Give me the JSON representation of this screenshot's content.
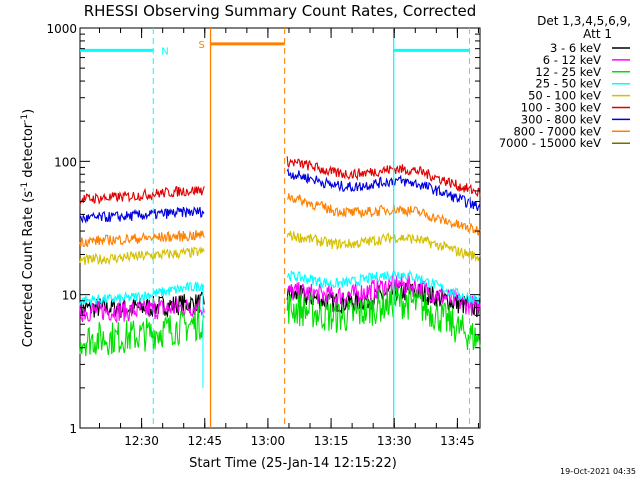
{
  "chart_data": {
    "type": "line",
    "title": "RHESSI Observing Summary Count Rates, Corrected",
    "xlabel": "Start Time (25-Jan-14 12:15:22)",
    "ylabel": "Corrected Count Rate (s-1 detector-1)",
    "ylabel_parts": {
      "main": "Corrected Count Rate (s",
      "exp1": "-1",
      "mid": " detector",
      "exp2": "-1",
      "end": ")"
    },
    "y_scale": "log",
    "ylim": [
      1,
      1000
    ],
    "xlim_minutes": [
      0,
      95
    ],
    "x_ticks": [
      {
        "label": "12:30",
        "minute": 14.63
      },
      {
        "label": "12:45",
        "minute": 29.63
      },
      {
        "label": "13:00",
        "minute": 44.63
      },
      {
        "label": "13:15",
        "minute": 59.63
      },
      {
        "label": "13:30",
        "minute": 74.63
      },
      {
        "label": "13:45",
        "minute": 89.63
      }
    ],
    "y_ticks": [
      {
        "label": "1",
        "value": 1
      },
      {
        "label": "10",
        "value": 10
      },
      {
        "label": "100",
        "value": 100
      },
      {
        "label": "1000",
        "value": 1000
      }
    ],
    "legend": {
      "position": "top-right",
      "header_line1": "Det 1,3,4,5,6,9,",
      "header_line2": "Att 1",
      "entries": [
        {
          "label": "3 - 6 keV",
          "color": "#000000"
        },
        {
          "label": "6 - 12 keV",
          "color": "#ff00ff"
        },
        {
          "label": "12 - 25 keV",
          "color": "#00e000"
        },
        {
          "label": "25 - 50 keV",
          "color": "#00ffff"
        },
        {
          "label": "50 - 100 keV",
          "color": "#d4c000"
        },
        {
          "label": "100 - 300 keV",
          "color": "#e00000"
        },
        {
          "label": "300 - 800 keV",
          "color": "#0000e0"
        },
        {
          "label": "800 - 7000 keV",
          "color": "#ff8000"
        },
        {
          "label": "7000 - 15000 keV",
          "color": "#707000"
        }
      ]
    },
    "annotations": {
      "night": {
        "label": "N",
        "color": "#00ffff",
        "spans": [
          [
            0.0,
            17.4
          ],
          [
            74.5,
            92.5
          ]
        ],
        "boundary_minutes": [
          17.4,
          92.5
        ],
        "marker_value": 680
      },
      "saa": {
        "label": "S",
        "color": "#ff8000",
        "spans": [
          [
            31.0,
            48.6
          ]
        ],
        "boundary_minutes": [
          48.6
        ],
        "marker_value": 760
      },
      "solid_lines": [
        {
          "minute": 74.5,
          "color": "#00ffff"
        },
        {
          "minute": 31.0,
          "color": "#ff8000"
        }
      ]
    },
    "data_gap_minutes": [
      29.5,
      49.2
    ],
    "series": [
      {
        "name": "3 - 6 keV",
        "color": "#000000",
        "segments": [
          {
            "minute": [
              0,
              5,
              10,
              15,
              20,
              25,
              29.5
            ],
            "value": [
              7.8,
              8.0,
              7.9,
              8.0,
              8.3,
              8.5,
              8.7
            ]
          },
          {
            "minute": [
              49.2,
              55,
              60,
              65,
              70,
              75,
              80,
              85,
              90,
              95
            ],
            "value": [
              10.0,
              9.5,
              8.8,
              8.8,
              9.5,
              10.5,
              10.5,
              9.5,
              8.5,
              8.0
            ]
          }
        ]
      },
      {
        "name": "6 - 12 keV",
        "color": "#ff00ff",
        "segments": [
          {
            "minute": [
              0,
              5,
              10,
              15,
              20,
              25,
              29.5
            ],
            "value": [
              7.4,
              7.6,
              7.5,
              7.6,
              7.9,
              8.0,
              8.2
            ]
          },
          {
            "minute": [
              49.2,
              55,
              60,
              65,
              70,
              75,
              80,
              85,
              90,
              95
            ],
            "value": [
              10.5,
              10.2,
              9.8,
              10.0,
              11.0,
              12.0,
              11.5,
              10.0,
              8.8,
              8.0
            ]
          }
        ]
      },
      {
        "name": "12 - 25 keV",
        "color": "#00e000",
        "segments": [
          {
            "minute": [
              0,
              5,
              10,
              15,
              20,
              25,
              29.5
            ],
            "value": [
              4.6,
              4.7,
              4.8,
              5.0,
              5.4,
              5.8,
              6.3
            ]
          },
          {
            "minute": [
              49.2,
              55,
              60,
              65,
              70,
              75,
              80,
              85,
              90,
              95
            ],
            "value": [
              8.0,
              7.5,
              6.8,
              7.0,
              8.0,
              9.0,
              8.5,
              7.0,
              5.5,
              4.5
            ]
          }
        ]
      },
      {
        "name": "25 - 50 keV",
        "color": "#00ffff",
        "segments": [
          {
            "minute": [
              0,
              5,
              10,
              15,
              20,
              25,
              29.5
            ],
            "value": [
              9.0,
              9.2,
              9.3,
              9.8,
              10.5,
              11.2,
              11.8
            ]
          },
          {
            "minute": [
              49.2,
              55,
              60,
              65,
              70,
              75,
              80,
              85,
              90,
              95
            ],
            "value": [
              14.0,
              13.0,
              12.0,
              12.5,
              13.5,
              14.5,
              13.5,
              11.5,
              10.0,
              9.0
            ]
          }
        ]
      },
      {
        "name": "50 - 100 keV",
        "color": "#d4c000",
        "segments": [
          {
            "minute": [
              0,
              5,
              10,
              15,
              20,
              25,
              29.5
            ],
            "value": [
              18.0,
              18.5,
              19.0,
              19.5,
              20.0,
              20.5,
              21.0
            ]
          },
          {
            "minute": [
              49.2,
              55,
              60,
              65,
              70,
              75,
              80,
              85,
              90,
              95
            ],
            "value": [
              28.0,
              26.0,
              24.0,
              24.0,
              25.5,
              27.0,
              26.0,
              23.5,
              21.0,
              19.0
            ]
          }
        ]
      },
      {
        "name": "100 - 300 keV",
        "color": "#e00000",
        "segments": [
          {
            "minute": [
              0,
              5,
              10,
              15,
              20,
              25,
              29.5
            ],
            "value": [
              52.0,
              53.0,
              54.0,
              56.0,
              58.0,
              60.0,
              61.0
            ]
          },
          {
            "minute": [
              49.2,
              55,
              60,
              65,
              70,
              75,
              80,
              85,
              90,
              95
            ],
            "value": [
              100.0,
              92.0,
              82.0,
              80.0,
              84.0,
              88.0,
              85.0,
              75.0,
              65.0,
              58.0
            ]
          }
        ]
      },
      {
        "name": "300 - 800 keV",
        "color": "#0000e0",
        "segments": [
          {
            "minute": [
              0,
              5,
              10,
              15,
              20,
              25,
              29.5
            ],
            "value": [
              37.0,
              38.0,
              38.5,
              39.5,
              40.5,
              41.5,
              42.0
            ]
          },
          {
            "minute": [
              49.2,
              55,
              60,
              65,
              70,
              75,
              80,
              85,
              90,
              95
            ],
            "value": [
              82.0,
              74.0,
              66.0,
              64.0,
              68.0,
              72.0,
              68.0,
              60.0,
              52.0,
              45.0
            ]
          }
        ]
      },
      {
        "name": "800 - 7000 keV",
        "color": "#ff8000",
        "segments": [
          {
            "minute": [
              0,
              5,
              10,
              15,
              20,
              25,
              29.5
            ],
            "value": [
              25.0,
              25.5,
              26.0,
              26.5,
              27.0,
              27.5,
              28.0
            ]
          },
          {
            "minute": [
              49.2,
              55,
              60,
              65,
              70,
              75,
              80,
              85,
              90,
              95
            ],
            "value": [
              55.0,
              48.0,
              43.0,
              41.0,
              42.0,
              44.0,
              42.0,
              37.0,
              33.0,
              30.0
            ]
          }
        ]
      },
      {
        "name": "7000 - 15000 keV",
        "color": "#707000",
        "segments": []
      }
    ]
  },
  "footer_timestamp": "19-Oct-2021 04:35"
}
